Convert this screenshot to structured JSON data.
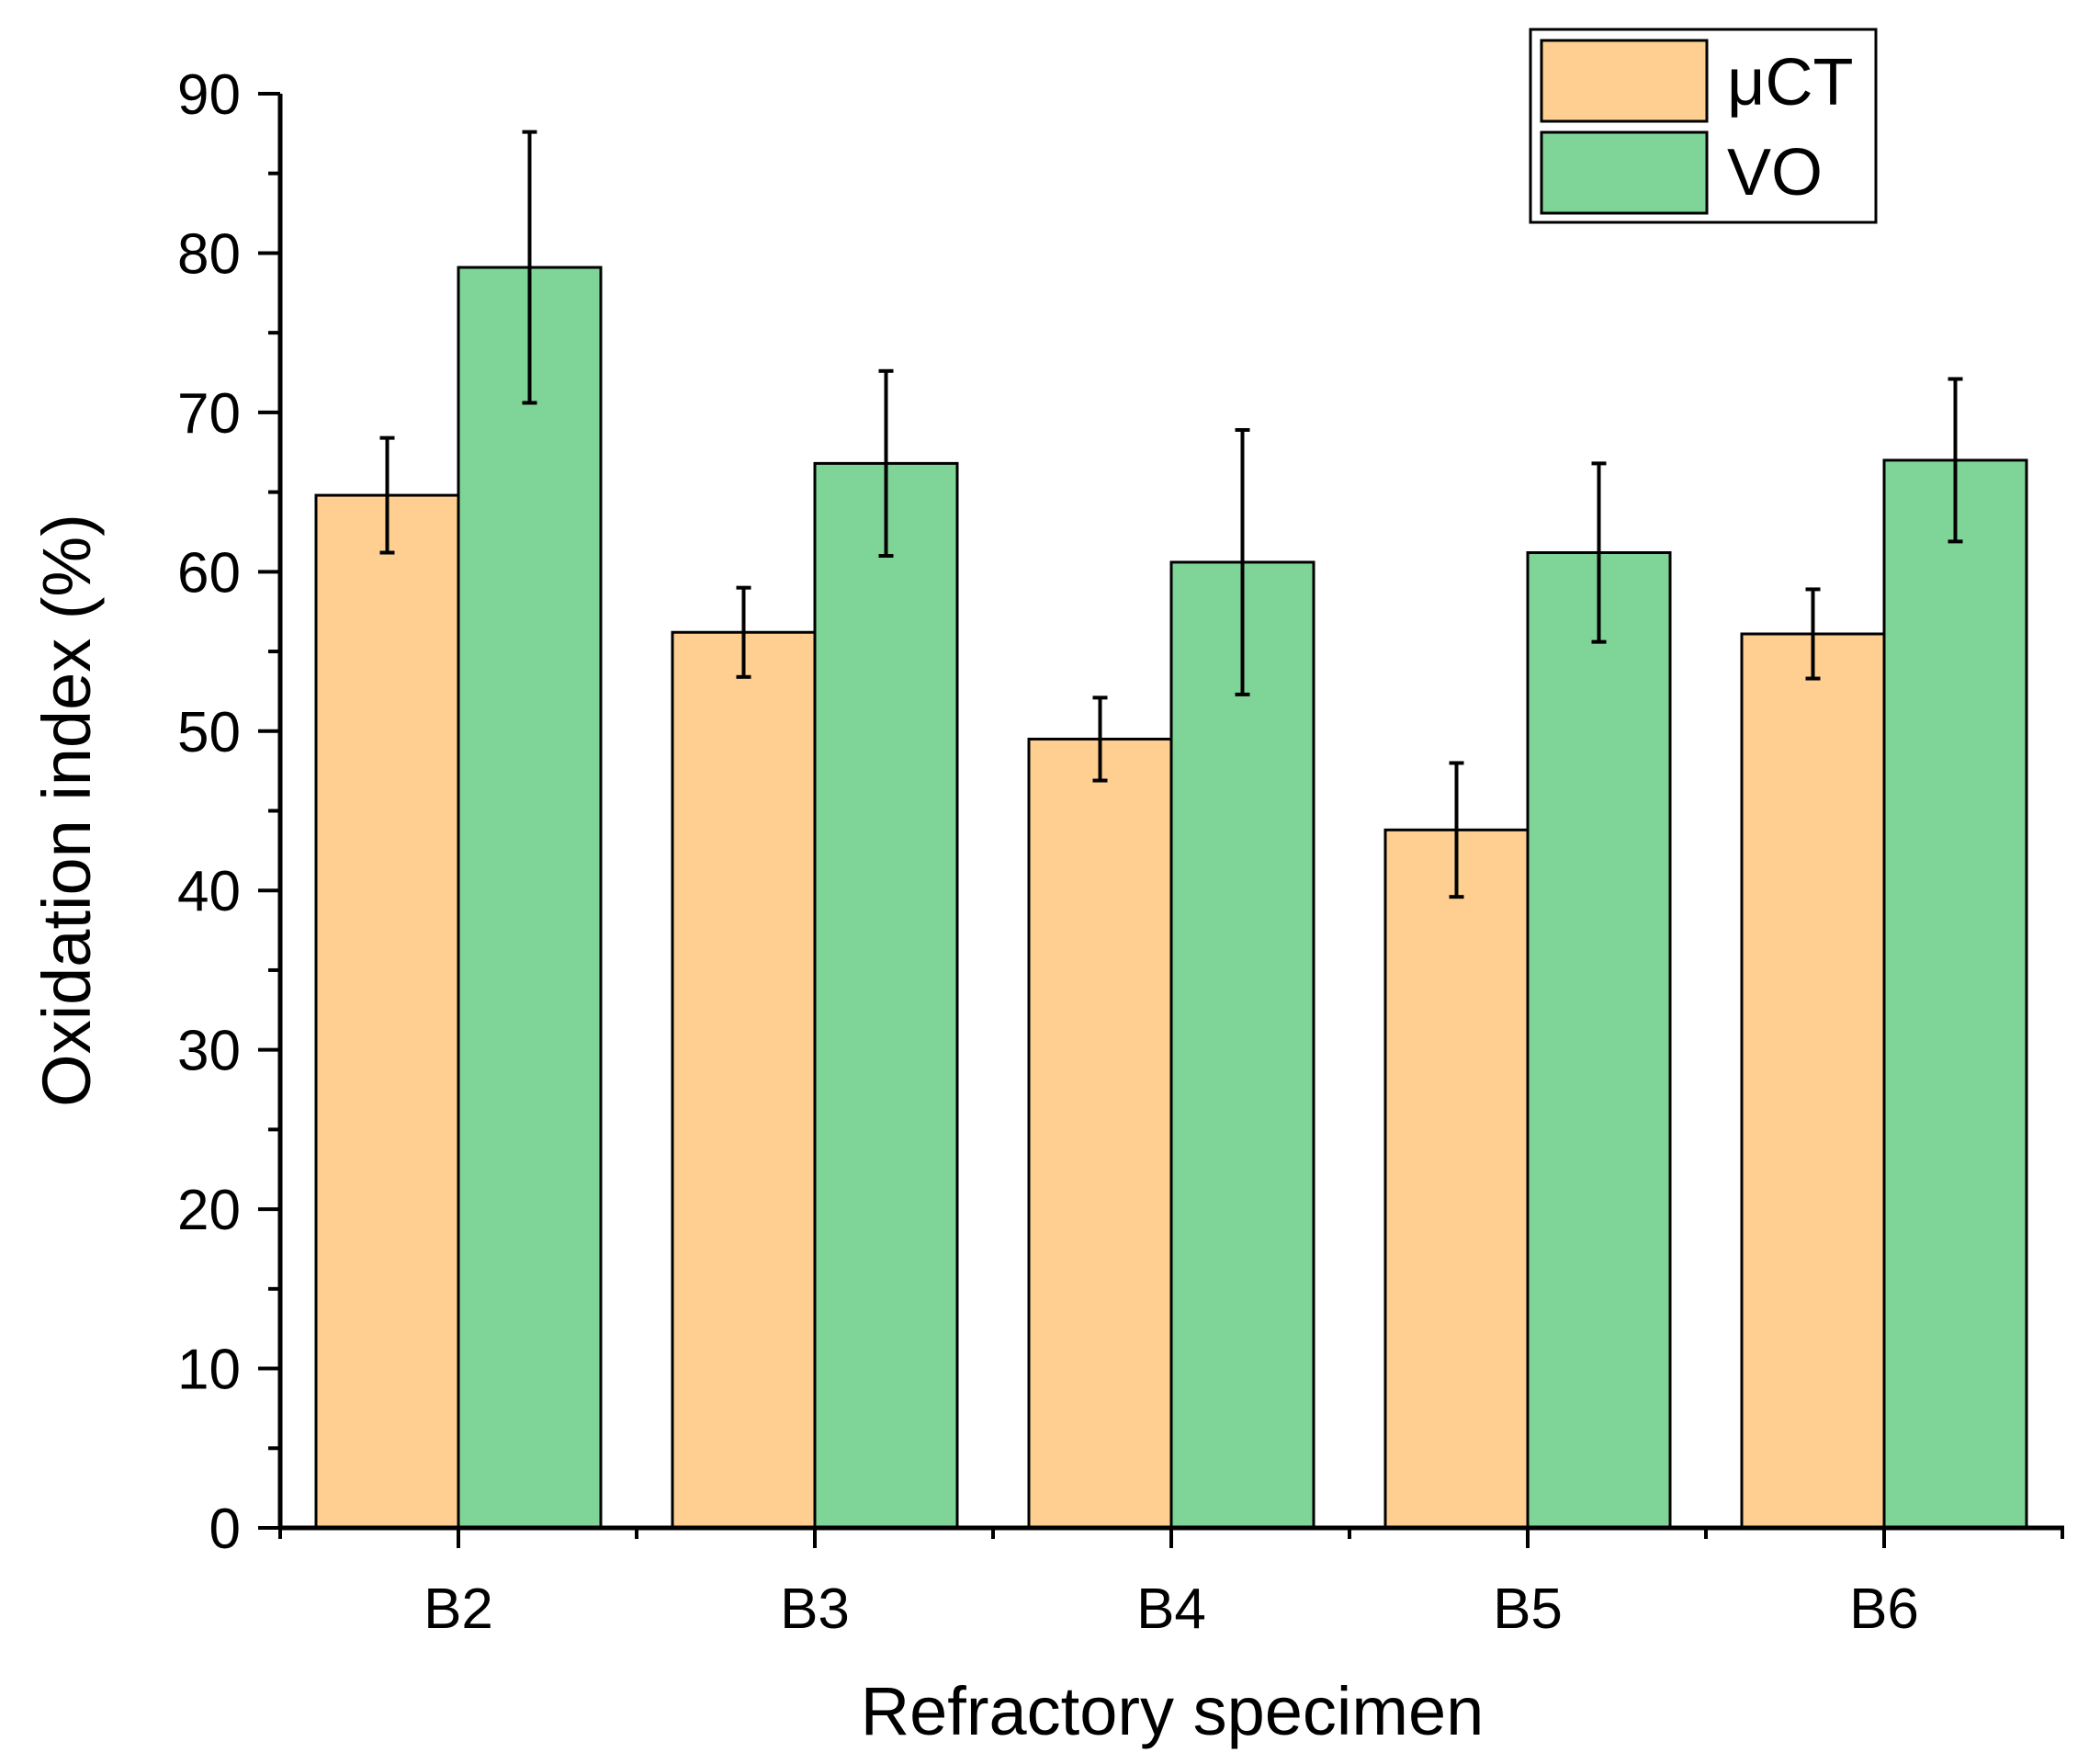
{
  "chart_data": {
    "type": "bar",
    "title": "",
    "xlabel": "Refractory specimen",
    "ylabel": "Oxidation index (%)",
    "ylim": [
      0,
      90
    ],
    "yticks": [
      0,
      10,
      20,
      30,
      40,
      50,
      60,
      70,
      80,
      90
    ],
    "categories": [
      "B2",
      "B3",
      "B4",
      "B5",
      "B6"
    ],
    "series": [
      {
        "name": "μCT",
        "color": "#FFCF91",
        "values": [
          64.8,
          56.2,
          49.5,
          43.8,
          56.1
        ],
        "errors": [
          3.6,
          2.8,
          2.6,
          4.2,
          2.8
        ]
      },
      {
        "name": "VO",
        "color": "#7FD598",
        "values": [
          79.1,
          66.8,
          60.6,
          61.2,
          67.0
        ],
        "errors": [
          8.5,
          5.8,
          8.3,
          5.6,
          5.1
        ]
      }
    ],
    "legend_position": "top-right",
    "grid": false
  }
}
